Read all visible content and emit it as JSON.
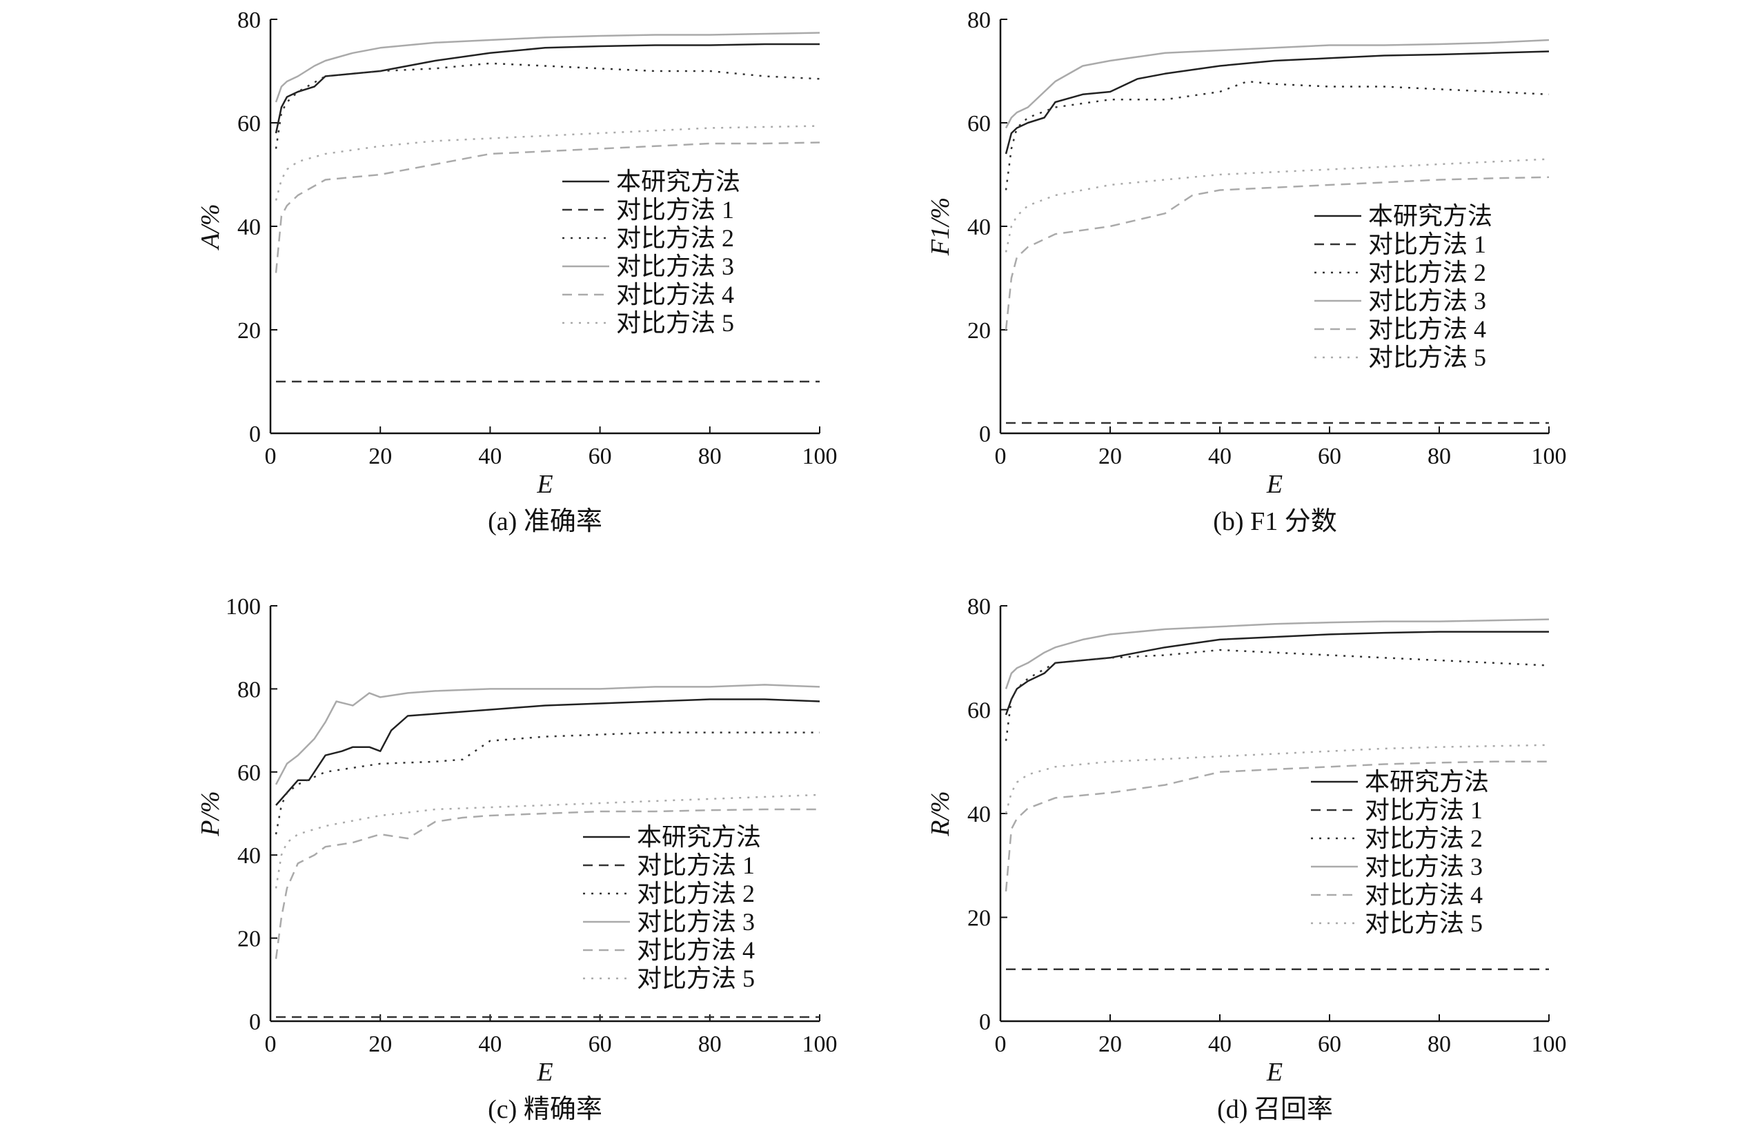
{
  "chart_data": [
    {
      "type": "line",
      "caption": "(a) 准确率",
      "xlabel": "E",
      "ylabel": "A/%",
      "xlim": [
        0,
        100
      ],
      "ylim": [
        0,
        80
      ],
      "xticks": [
        "0",
        "20",
        "40",
        "60",
        "80",
        "100"
      ],
      "yticks": [
        "0",
        "20",
        "40",
        "60",
        "80"
      ],
      "legend_position": "center-right",
      "series": [
        {
          "name": "本研究方法",
          "color": "#222222",
          "dash": "solid",
          "x": [
            1,
            2,
            3,
            5,
            8,
            10,
            15,
            20,
            25,
            30,
            40,
            50,
            60,
            70,
            80,
            90,
            100
          ],
          "y": [
            58,
            63,
            65,
            66,
            67,
            69,
            69.5,
            70,
            71,
            72,
            73.5,
            74.5,
            74.8,
            75,
            75,
            75.2,
            75.2
          ]
        },
        {
          "name": "对比方法 1",
          "color": "#333333",
          "dash": "dashed",
          "x": [
            1,
            20,
            40,
            60,
            80,
            100
          ],
          "y": [
            10,
            10,
            10,
            10,
            10,
            10
          ]
        },
        {
          "name": "对比方法 2",
          "color": "#333333",
          "dash": "dotted",
          "x": [
            1,
            2,
            3,
            5,
            10,
            20,
            30,
            40,
            50,
            60,
            70,
            80,
            90,
            100
          ],
          "y": [
            55,
            62,
            64,
            66,
            69,
            70,
            70.5,
            71.5,
            71,
            70.5,
            70,
            70,
            69,
            68.5
          ]
        },
        {
          "name": "对比方法 3",
          "color": "#aaaaaa",
          "dash": "solid",
          "x": [
            1,
            2,
            3,
            5,
            8,
            10,
            15,
            20,
            30,
            40,
            50,
            60,
            70,
            80,
            90,
            100
          ],
          "y": [
            64,
            67,
            68,
            69,
            71,
            72,
            73.5,
            74.5,
            75.5,
            76,
            76.5,
            76.8,
            77,
            77,
            77.2,
            77.4
          ]
        },
        {
          "name": "对比方法 4",
          "color": "#aaaaaa",
          "dash": "dashed",
          "x": [
            1,
            2,
            3,
            5,
            10,
            20,
            30,
            40,
            50,
            60,
            70,
            80,
            90,
            100
          ],
          "y": [
            31,
            42,
            44,
            46,
            49,
            50,
            52,
            54,
            54.5,
            55,
            55.5,
            56,
            56,
            56.2
          ]
        },
        {
          "name": "对比方法 5",
          "color": "#aaaaaa",
          "dash": "dotted",
          "x": [
            1,
            2,
            3,
            5,
            10,
            20,
            30,
            40,
            50,
            60,
            70,
            80,
            90,
            100
          ],
          "y": [
            45,
            49,
            51,
            52.5,
            54,
            55.5,
            56.5,
            57,
            57.5,
            58,
            58.5,
            59,
            59.2,
            59.4
          ]
        }
      ]
    },
    {
      "type": "line",
      "caption": "(b) F1 分数",
      "xlabel": "E",
      "ylabel": "F1/%",
      "xlim": [
        0,
        100
      ],
      "ylim": [
        0,
        80
      ],
      "xticks": [
        "0",
        "20",
        "40",
        "60",
        "80",
        "100"
      ],
      "yticks": [
        "0",
        "20",
        "40",
        "60",
        "80"
      ],
      "legend_position": "center-right",
      "series": [
        {
          "name": "本研究方法",
          "color": "#222222",
          "dash": "solid",
          "x": [
            1,
            2,
            3,
            5,
            8,
            10,
            15,
            20,
            25,
            30,
            40,
            50,
            60,
            70,
            80,
            90,
            100
          ],
          "y": [
            54,
            58,
            59,
            60,
            61,
            64,
            65.5,
            66,
            68.5,
            69.5,
            71,
            72,
            72.5,
            73,
            73.2,
            73.5,
            73.8
          ]
        },
        {
          "name": "对比方法 1",
          "color": "#333333",
          "dash": "dashed",
          "x": [
            1,
            20,
            40,
            60,
            80,
            100
          ],
          "y": [
            2,
            2,
            2,
            2,
            2,
            2
          ]
        },
        {
          "name": "对比方法 2",
          "color": "#333333",
          "dash": "dotted",
          "x": [
            1,
            2,
            3,
            5,
            10,
            20,
            30,
            40,
            45,
            50,
            60,
            70,
            80,
            90,
            100
          ],
          "y": [
            47,
            55,
            59,
            61,
            63,
            64.5,
            64.5,
            66,
            68,
            67.5,
            67,
            67,
            66.5,
            66,
            65.5
          ]
        },
        {
          "name": "对比方法 3",
          "color": "#aaaaaa",
          "dash": "solid",
          "x": [
            1,
            2,
            3,
            5,
            8,
            10,
            15,
            20,
            30,
            40,
            50,
            60,
            70,
            80,
            90,
            100
          ],
          "y": [
            59,
            61,
            62,
            63,
            66,
            68,
            71,
            72,
            73.5,
            74,
            74.5,
            75,
            75,
            75.2,
            75.5,
            76
          ]
        },
        {
          "name": "对比方法 4",
          "color": "#aaaaaa",
          "dash": "dashed",
          "x": [
            1,
            2,
            3,
            5,
            10,
            20,
            30,
            35,
            40,
            50,
            60,
            70,
            80,
            90,
            100
          ],
          "y": [
            20,
            30,
            34,
            36,
            38.5,
            40,
            42.5,
            46,
            47,
            47.5,
            48,
            48.5,
            49,
            49.3,
            49.5
          ]
        },
        {
          "name": "对比方法 5",
          "color": "#aaaaaa",
          "dash": "dotted",
          "x": [
            1,
            2,
            3,
            5,
            10,
            20,
            30,
            40,
            50,
            60,
            70,
            80,
            90,
            100
          ],
          "y": [
            35,
            40,
            42,
            44,
            46,
            48,
            49,
            50,
            50.5,
            51,
            51.5,
            52,
            52.5,
            53
          ]
        }
      ]
    },
    {
      "type": "line",
      "caption": "(c) 精确率",
      "xlabel": "E",
      "ylabel": "P/%",
      "xlim": [
        0,
        100
      ],
      "ylim": [
        0,
        100
      ],
      "xticks": [
        "0",
        "20",
        "40",
        "60",
        "80",
        "100"
      ],
      "yticks": [
        "0",
        "20",
        "40",
        "60",
        "80",
        "100"
      ],
      "legend_position": "lower-right",
      "series": [
        {
          "name": "本研究方法",
          "color": "#222222",
          "dash": "solid",
          "x": [
            1,
            3,
            5,
            7,
            10,
            13,
            15,
            18,
            20,
            22,
            25,
            30,
            40,
            50,
            60,
            70,
            80,
            90,
            100
          ],
          "y": [
            52,
            55,
            58,
            58,
            64,
            65,
            66,
            66,
            65,
            70,
            73.5,
            74,
            75,
            76,
            76.5,
            77,
            77.5,
            77.5,
            77
          ]
        },
        {
          "name": "对比方法 1",
          "color": "#333333",
          "dash": "dashed",
          "x": [
            1,
            20,
            40,
            60,
            80,
            100
          ],
          "y": [
            1,
            1,
            1,
            1,
            1,
            1
          ]
        },
        {
          "name": "对比方法 2",
          "color": "#333333",
          "dash": "dotted",
          "x": [
            1,
            2,
            3,
            5,
            10,
            15,
            20,
            30,
            35,
            40,
            50,
            60,
            70,
            80,
            90,
            100
          ],
          "y": [
            45,
            52,
            55,
            57,
            60,
            61,
            62,
            62.5,
            63,
            67.5,
            68.5,
            69,
            69.5,
            69.5,
            69.5,
            69.5
          ]
        },
        {
          "name": "对比方法 3",
          "color": "#aaaaaa",
          "dash": "solid",
          "x": [
            1,
            3,
            5,
            8,
            10,
            12,
            15,
            18,
            20,
            25,
            30,
            40,
            50,
            60,
            70,
            80,
            90,
            100
          ],
          "y": [
            57,
            62,
            64,
            68,
            72,
            77,
            76,
            79,
            78,
            79,
            79.5,
            80,
            80,
            80,
            80.5,
            80.5,
            81,
            80.5
          ]
        },
        {
          "name": "对比方法 4",
          "color": "#aaaaaa",
          "dash": "dashed",
          "x": [
            1,
            2,
            3,
            5,
            8,
            10,
            15,
            20,
            25,
            30,
            35,
            40,
            50,
            60,
            70,
            80,
            90,
            100
          ],
          "y": [
            15,
            25,
            32,
            38,
            40,
            42,
            43,
            45,
            44,
            48,
            49,
            49.5,
            50,
            50.5,
            50.5,
            50.8,
            51,
            51
          ]
        },
        {
          "name": "对比方法 5",
          "color": "#aaaaaa",
          "dash": "dotted",
          "x": [
            1,
            2,
            3,
            5,
            10,
            20,
            30,
            40,
            50,
            60,
            70,
            80,
            90,
            100
          ],
          "y": [
            32,
            40,
            43,
            45,
            47,
            49.5,
            51,
            51.5,
            52,
            52.5,
            53,
            53.5,
            54,
            54.5
          ]
        }
      ]
    },
    {
      "type": "line",
      "caption": "(d) 召回率",
      "xlabel": "E",
      "ylabel": "R/%",
      "xlim": [
        0,
        100
      ],
      "ylim": [
        0,
        80
      ],
      "xticks": [
        "0",
        "20",
        "40",
        "60",
        "80",
        "100"
      ],
      "yticks": [
        "0",
        "20",
        "40",
        "60",
        "80"
      ],
      "legend_position": "center-right",
      "series": [
        {
          "name": "本研究方法",
          "color": "#222222",
          "dash": "solid",
          "x": [
            1,
            2,
            3,
            5,
            8,
            10,
            15,
            20,
            25,
            30,
            40,
            50,
            60,
            70,
            80,
            90,
            100
          ],
          "y": [
            59,
            62,
            64,
            65.5,
            67,
            69,
            69.5,
            70,
            71,
            72,
            73.5,
            74,
            74.5,
            74.8,
            75,
            75,
            75
          ]
        },
        {
          "name": "对比方法 1",
          "color": "#333333",
          "dash": "dashed",
          "x": [
            1,
            20,
            40,
            60,
            80,
            100
          ],
          "y": [
            10,
            10,
            10,
            10,
            10,
            10
          ]
        },
        {
          "name": "对比方法 2",
          "color": "#333333",
          "dash": "dotted",
          "x": [
            1,
            2,
            3,
            5,
            10,
            20,
            30,
            40,
            50,
            60,
            70,
            80,
            90,
            100
          ],
          "y": [
            54,
            62,
            64,
            66,
            69,
            70,
            70.5,
            71.5,
            71,
            70.5,
            70,
            69.5,
            69,
            68.5
          ]
        },
        {
          "name": "对比方法 3",
          "color": "#aaaaaa",
          "dash": "solid",
          "x": [
            1,
            2,
            3,
            5,
            8,
            10,
            15,
            20,
            30,
            40,
            50,
            60,
            70,
            80,
            90,
            100
          ],
          "y": [
            64,
            67,
            68,
            69,
            71,
            72,
            73.5,
            74.5,
            75.5,
            76,
            76.5,
            76.8,
            77,
            77,
            77.2,
            77.4
          ]
        },
        {
          "name": "对比方法 4",
          "color": "#aaaaaa",
          "dash": "dashed",
          "x": [
            1,
            2,
            3,
            5,
            10,
            20,
            30,
            40,
            50,
            60,
            70,
            80,
            90,
            100
          ],
          "y": [
            25,
            37,
            39,
            41,
            43,
            44,
            45.5,
            48,
            48.5,
            49,
            49.5,
            49.8,
            50,
            50
          ]
        },
        {
          "name": "对比方法 5",
          "color": "#aaaaaa",
          "dash": "dotted",
          "x": [
            1,
            2,
            3,
            5,
            10,
            20,
            30,
            40,
            50,
            60,
            70,
            80,
            90,
            100
          ],
          "y": [
            40,
            44,
            46,
            47.5,
            49,
            50,
            50.5,
            51,
            51.5,
            52,
            52.5,
            52.8,
            53,
            53.2
          ]
        }
      ]
    }
  ]
}
